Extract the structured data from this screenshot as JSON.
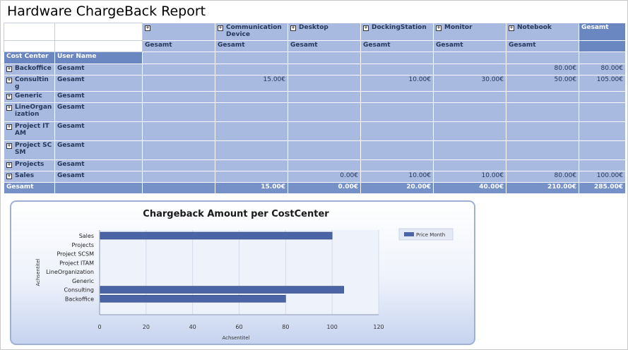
{
  "report": {
    "title": "Hardware ChargeBack Report"
  },
  "pivot": {
    "column_groups": [
      {
        "label": "",
        "sub": "Gesamt"
      },
      {
        "label": "Communication Device",
        "sub": "Gesamt"
      },
      {
        "label": "Desktop",
        "sub": "Gesamt"
      },
      {
        "label": "DockingStation",
        "sub": "Gesamt"
      },
      {
        "label": "Monitor",
        "sub": "Gesamt"
      },
      {
        "label": "Notebook",
        "sub": "Gesamt"
      }
    ],
    "grand_col_label": "Gesamt",
    "row_header_cost_center": "Cost Center",
    "row_header_user": "User Name",
    "rows": [
      {
        "cost_center": "Backoffice",
        "user": "Gesamt",
        "values": [
          "",
          "",
          "",
          "",
          "",
          "80.00€"
        ],
        "total": "80.00€"
      },
      {
        "cost_center": "Consulting",
        "user": "Gesamt",
        "values": [
          "",
          "15.00€",
          "",
          "10.00€",
          "30.00€",
          "50.00€"
        ],
        "total": "105.00€"
      },
      {
        "cost_center": "Generic",
        "user": "Gesamt",
        "values": [
          "",
          "",
          "",
          "",
          "",
          ""
        ],
        "total": ""
      },
      {
        "cost_center": "LineOrganization",
        "user": "Gesamt",
        "values": [
          "",
          "",
          "",
          "",
          "",
          ""
        ],
        "total": ""
      },
      {
        "cost_center": "Project ITAM",
        "user": "Gesamt",
        "values": [
          "",
          "",
          "",
          "",
          "",
          ""
        ],
        "total": ""
      },
      {
        "cost_center": "Project SCSM",
        "user": "Gesamt",
        "values": [
          "",
          "",
          "",
          "",
          "",
          ""
        ],
        "total": ""
      },
      {
        "cost_center": "Projects",
        "user": "Gesamt",
        "values": [
          "",
          "",
          "",
          "",
          "",
          ""
        ],
        "total": ""
      },
      {
        "cost_center": "Sales",
        "user": "Gesamt",
        "values": [
          "",
          "",
          "0.00€",
          "10.00€",
          "10.00€",
          "80.00€"
        ],
        "total": "100.00€"
      }
    ],
    "grand_total": {
      "label": "Gesamt",
      "values": [
        "",
        "15.00€",
        "0.00€",
        "20.00€",
        "40.00€",
        "210.00€"
      ],
      "total": "285.00€"
    }
  },
  "chart_data": {
    "type": "bar",
    "orientation": "horizontal",
    "title": "Chargeback Amount per CostCenter",
    "xlabel": "Achsentitel",
    "ylabel": "Achsentitel",
    "categories": [
      "Sales",
      "Projects",
      "Project SCSM",
      "Project ITAM",
      "LineOrganization",
      "Generic",
      "Consulting",
      "Backoffice"
    ],
    "series": [
      {
        "name": "Price Month",
        "values": [
          100,
          0,
          0,
          0,
          0,
          0,
          105,
          80
        ]
      }
    ],
    "xlim": [
      0,
      120
    ],
    "xticks": [
      0,
      20,
      40,
      60,
      80,
      100,
      120
    ],
    "grid": true,
    "legend_position": "top-right",
    "bar_color": "#4a64a6"
  }
}
